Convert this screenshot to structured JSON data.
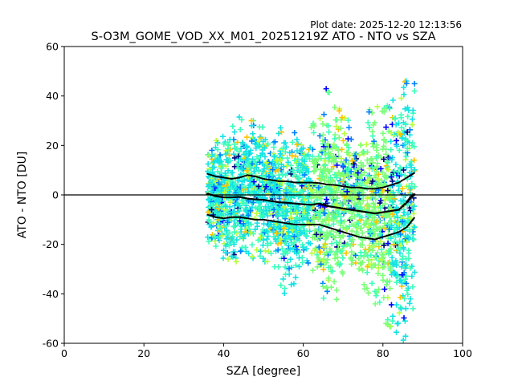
{
  "plot_date": "Plot date: 2025-12-20 12:13:56",
  "chart_data": {
    "type": "scatter",
    "title": "S-O3M_GOME_VOD_XX_M01_20251219Z ATO - NTO vs SZA",
    "xlabel": "SZA [degree]",
    "ylabel": "ATO - NTO [DU]",
    "xlim": [
      0,
      100
    ],
    "ylim": [
      -60,
      60
    ],
    "xticks": [
      0,
      20,
      40,
      60,
      80,
      100
    ],
    "yticks": [
      -60,
      -40,
      -20,
      0,
      20,
      40,
      60
    ],
    "grid": false,
    "legend": "none",
    "reference_line_y": 0,
    "scatter_colors": [
      "#00007f",
      "#0000ff",
      "#0080ff",
      "#15e3e3",
      "#3dffba",
      "#7cff79",
      "#b9ff3c",
      "#ffc200",
      "#ff8800"
    ],
    "scatter_envelope": {
      "sza": [
        36,
        38,
        40,
        42,
        44,
        46,
        48,
        50,
        52,
        54,
        56,
        58,
        60,
        62,
        64,
        66,
        68,
        70,
        72,
        74,
        76,
        78,
        80,
        82,
        84,
        86,
        88
      ],
      "upper": [
        20,
        22,
        25,
        30,
        32,
        30,
        32,
        30,
        28,
        27,
        30,
        26,
        27,
        29,
        32,
        45,
        38,
        35,
        30,
        26,
        34,
        40,
        35,
        38,
        42,
        48,
        50
      ],
      "lower": [
        -22,
        -25,
        -28,
        -30,
        -30,
        -28,
        -27,
        -28,
        -30,
        -38,
        -42,
        -35,
        -30,
        -28,
        -40,
        -45,
        -44,
        -38,
        -32,
        -34,
        -40,
        -46,
        -52,
        -56,
        -58,
        -60,
        -45
      ]
    },
    "series": [
      {
        "stat": "mean",
        "x": [
          36,
          38,
          40,
          42,
          44,
          46,
          48,
          50,
          52,
          54,
          56,
          58,
          60,
          62,
          64,
          66,
          68,
          70,
          72,
          74,
          76,
          78,
          80,
          82,
          84,
          86,
          87,
          88
        ],
        "y": [
          0.5,
          -0.5,
          -1,
          -1,
          -0.8,
          -1.5,
          -1.8,
          -2,
          -2.5,
          -3,
          -3.2,
          -3.5,
          -3.8,
          -4,
          -3.5,
          -4.5,
          -5,
          -5.5,
          -6,
          -6.5,
          -7,
          -7.5,
          -7,
          -6.5,
          -6,
          -3,
          -1,
          0.5
        ]
      },
      {
        "stat": "mean+std",
        "x": [
          36,
          38,
          40,
          42,
          44,
          46,
          48,
          50,
          52,
          54,
          56,
          58,
          60,
          62,
          64,
          66,
          68,
          70,
          72,
          74,
          76,
          78,
          80,
          82,
          84,
          86,
          87,
          88
        ],
        "y": [
          8.5,
          7.5,
          7,
          6.5,
          7,
          8,
          7.5,
          6.5,
          6,
          5.5,
          5.5,
          5,
          5,
          5,
          4.8,
          4.2,
          4,
          3.5,
          3,
          3,
          2.5,
          2.5,
          3,
          4,
          5,
          7,
          8,
          9
        ]
      },
      {
        "stat": "mean-std",
        "x": [
          36,
          38,
          40,
          42,
          44,
          46,
          48,
          50,
          52,
          54,
          56,
          58,
          60,
          62,
          64,
          66,
          68,
          70,
          72,
          74,
          76,
          78,
          80,
          82,
          84,
          86,
          87,
          88
        ],
        "y": [
          -8,
          -9,
          -9.5,
          -9,
          -9,
          -9.5,
          -10,
          -10,
          -10.5,
          -11,
          -11.5,
          -12,
          -12,
          -12,
          -12,
          -13,
          -14,
          -15,
          -16,
          -17,
          -17.5,
          -18,
          -17,
          -16,
          -15,
          -13,
          -11,
          -9
        ]
      }
    ]
  }
}
